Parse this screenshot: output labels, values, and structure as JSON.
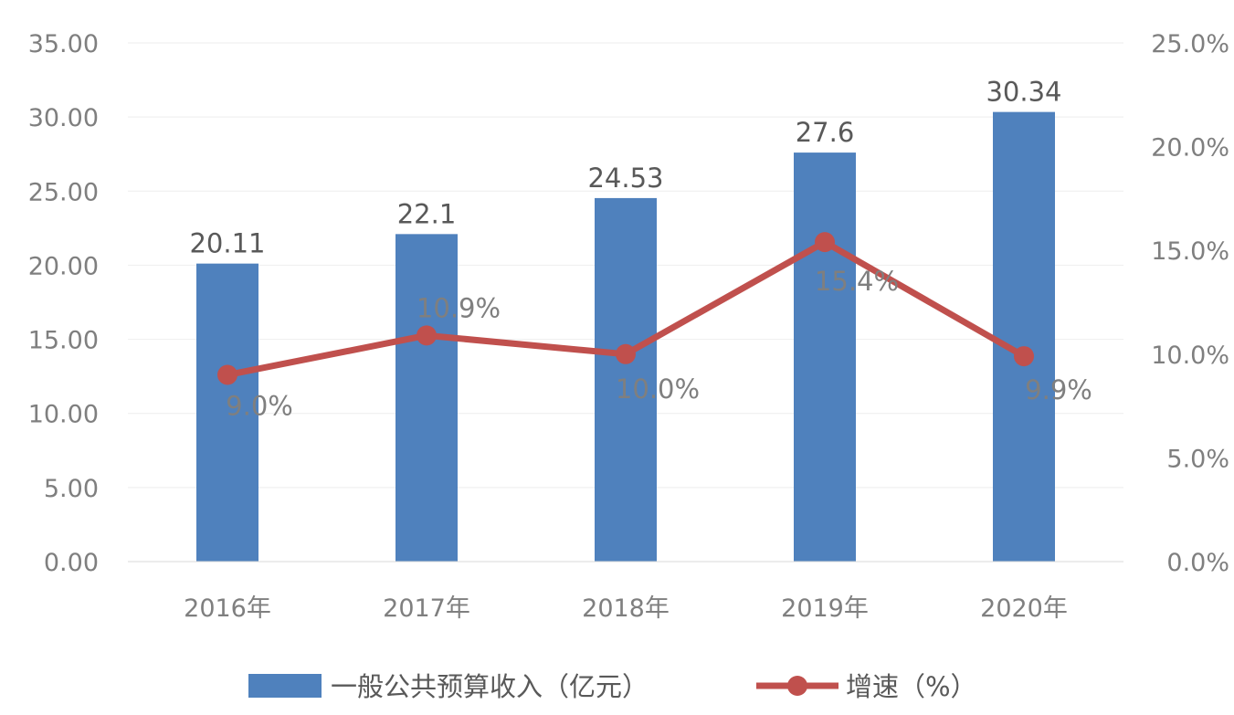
{
  "chart_data": {
    "type": "bar",
    "categories": [
      "2016年",
      "2017年",
      "2018年",
      "2019年",
      "2020年"
    ],
    "series": [
      {
        "name": "一般公共预算收入（亿元）",
        "type": "bar",
        "axis": "left",
        "values": [
          20.11,
          22.1,
          24.53,
          27.6,
          30.34
        ],
        "labels": [
          "20.11",
          "22.1",
          "24.53",
          "27.6",
          "30.34"
        ],
        "color": "#4f81bd"
      },
      {
        "name": "增速（%）",
        "type": "line",
        "axis": "right",
        "values": [
          9.0,
          10.9,
          10.0,
          15.4,
          9.9
        ],
        "labels": [
          "9.0%",
          "10.9%",
          "10.0%",
          "15.4%",
          "9.9%"
        ],
        "color": "#c0504d"
      }
    ],
    "y_left": {
      "min": 0,
      "max": 35,
      "ticks": [
        "0.00",
        "5.00",
        "10.00",
        "15.00",
        "20.00",
        "25.00",
        "30.00",
        "35.00"
      ]
    },
    "y_right": {
      "min": 0,
      "max": 25,
      "ticks": [
        "0.0%",
        "5.0%",
        "10.0%",
        "15.0%",
        "20.0%",
        "25.0%"
      ]
    },
    "grid": true,
    "legend": "bottom"
  }
}
